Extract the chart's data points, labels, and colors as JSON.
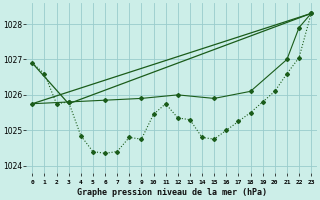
{
  "background_color": "#cceee8",
  "grid_color": "#99cccc",
  "line_color": "#1a5c1a",
  "title": "Graphe pression niveau de la mer (hPa)",
  "xlim": [
    -0.5,
    23.5
  ],
  "ylim": [
    1023.8,
    1028.6
  ],
  "yticks": [
    1024,
    1025,
    1026,
    1027,
    1028
  ],
  "xtick_labels": [
    "0",
    "1",
    "2",
    "3",
    "4",
    "5",
    "6",
    "7",
    "8",
    "9",
    "10",
    "11",
    "12",
    "13",
    "14",
    "15",
    "16",
    "17",
    "18",
    "19",
    "20",
    "21",
    "22",
    "23"
  ],
  "line1_x": [
    0,
    1,
    2,
    3,
    4,
    5,
    6,
    7,
    8,
    9,
    10,
    11,
    12,
    13,
    14,
    15,
    16,
    17,
    18,
    19,
    20,
    21,
    22,
    23
  ],
  "line1_y": [
    1026.9,
    1026.6,
    1025.75,
    1025.8,
    1024.85,
    1024.4,
    1024.35,
    1024.4,
    1024.8,
    1024.75,
    1025.45,
    1025.75,
    1025.35,
    1025.3,
    1024.8,
    1024.75,
    1025.0,
    1025.25,
    1025.5,
    1025.8,
    1026.1,
    1026.6,
    1027.05,
    1028.3
  ],
  "line2_x": [
    0,
    23
  ],
  "line2_y": [
    1025.75,
    1028.3
  ],
  "line3_x": [
    0,
    3,
    23
  ],
  "line3_y": [
    1026.9,
    1025.75,
    1028.3
  ],
  "line4_x": [
    0,
    3,
    6,
    9,
    12,
    15,
    18,
    21,
    22,
    23
  ],
  "line4_y": [
    1025.75,
    1025.8,
    1025.85,
    1025.9,
    1026.0,
    1025.9,
    1026.1,
    1027.0,
    1027.9,
    1028.3
  ]
}
